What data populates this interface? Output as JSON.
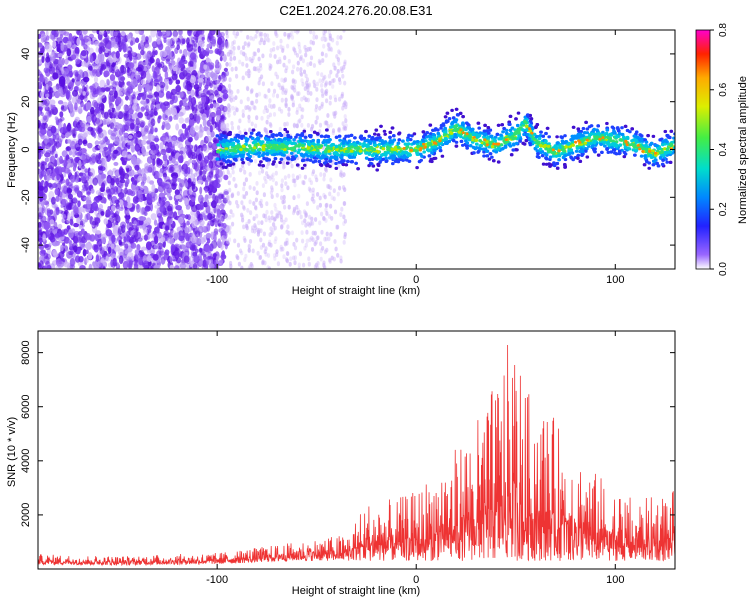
{
  "title": "C2E1.2024.276.20.08.E31",
  "chart_data": [
    {
      "type": "heatmap",
      "xlabel": "Height of straight line (km)",
      "ylabel": "Frequency (Hz)",
      "xlim": [
        -190,
        130
      ],
      "ylim": [
        -50,
        50
      ],
      "x_ticks": [
        -100,
        0,
        100
      ],
      "y_ticks": [
        -40,
        -20,
        0,
        20,
        40
      ],
      "colorbar": {
        "label": "Normalized spectral amplitude",
        "range": [
          0.0,
          0.8
        ],
        "ticks": [
          0.0,
          0.2,
          0.4,
          0.6,
          0.8
        ]
      },
      "ridge": {
        "x": [
          -100,
          -80,
          -60,
          -40,
          -20,
          0,
          10,
          20,
          30,
          40,
          50,
          55,
          60,
          70,
          80,
          90,
          100,
          110,
          120,
          130
        ],
        "y": [
          0,
          1,
          1,
          0,
          0,
          0,
          3,
          9,
          4,
          2,
          6,
          11,
          3,
          -1,
          2,
          5,
          4,
          2,
          -2,
          2
        ]
      }
    },
    {
      "type": "line",
      "xlabel": "Height of straight line (km)",
      "ylabel": "SNR (10 * v/v)",
      "xlim": [
        -190,
        130
      ],
      "ylim": [
        0,
        8800
      ],
      "x_ticks": [
        -100,
        0,
        100
      ],
      "y_ticks": [
        2000,
        4000,
        6000,
        8000
      ],
      "color": "#ee3333",
      "envelope": {
        "x": [
          -190,
          -150,
          -100,
          -80,
          -60,
          -35,
          -25,
          -10,
          0,
          10,
          20,
          30,
          40,
          45,
          50,
          55,
          60,
          70,
          80,
          90,
          100,
          110,
          120,
          130
        ],
        "y": [
          550,
          480,
          600,
          800,
          1000,
          1300,
          2500,
          2600,
          2900,
          3800,
          4500,
          5500,
          7000,
          8200,
          8700,
          6500,
          6700,
          5500,
          4500,
          3600,
          3000,
          2600,
          2700,
          3000
        ]
      }
    }
  ]
}
